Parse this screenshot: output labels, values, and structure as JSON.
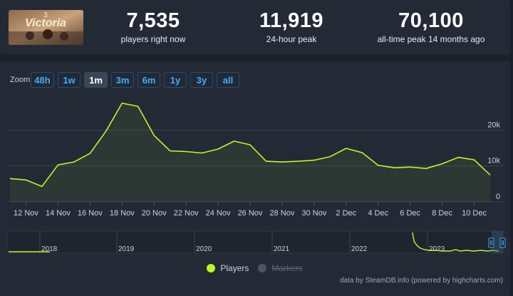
{
  "header": {
    "game_name": "Victoria 3",
    "thumb_text": "Victoria",
    "thumb_numeral": "3",
    "stats": [
      {
        "value": "7,535",
        "label": "players right now"
      },
      {
        "value": "11,919",
        "label": "24-hour peak"
      },
      {
        "value": "70,100",
        "label": "all-time peak 14 months ago"
      }
    ]
  },
  "zoom": {
    "label": "Zoom",
    "active": "1m",
    "buttons": [
      "48h",
      "1w",
      "1m",
      "3m",
      "6m",
      "1y",
      "3y",
      "all"
    ]
  },
  "chart_data": {
    "type": "line",
    "ylim": [
      0,
      30000
    ],
    "yticks": [
      {
        "v": 0,
        "label": "0"
      },
      {
        "v": 10000,
        "label": "10k"
      },
      {
        "v": 20000,
        "label": "20k"
      }
    ],
    "x_ticks": [
      "12 Nov",
      "14 Nov",
      "16 Nov",
      "18 Nov",
      "20 Nov",
      "22 Nov",
      "24 Nov",
      "26 Nov",
      "28 Nov",
      "30 Nov",
      "2 Dec",
      "4 Dec",
      "6 Dec",
      "8 Dec",
      "10 Dec"
    ],
    "series": [
      {
        "name": "Players",
        "color": "#bff52a",
        "x": [
          "11 Nov",
          "12 Nov",
          "13 Nov",
          "14 Nov",
          "15 Nov",
          "16 Nov",
          "17 Nov",
          "18 Nov",
          "19 Nov",
          "20 Nov",
          "21 Nov",
          "22 Nov",
          "23 Nov",
          "24 Nov",
          "25 Nov",
          "26 Nov",
          "27 Nov",
          "28 Nov",
          "29 Nov",
          "30 Nov",
          "1 Dec",
          "2 Dec",
          "3 Dec",
          "4 Dec",
          "5 Dec",
          "6 Dec",
          "7 Dec",
          "8 Dec",
          "9 Dec",
          "10 Dec",
          "11 Dec"
        ],
        "values": [
          6500,
          6100,
          4300,
          10300,
          11100,
          13500,
          19700,
          27500,
          26600,
          18500,
          14200,
          14000,
          13600,
          14700,
          16900,
          15900,
          11300,
          11100,
          11300,
          11600,
          12600,
          14900,
          13700,
          10200,
          9500,
          9700,
          9300,
          10600,
          12400,
          11700,
          7500
        ]
      }
    ],
    "navigator": {
      "year_labels": [
        "2018",
        "2019",
        "2020",
        "2021",
        "2022",
        "2023"
      ]
    },
    "legend": [
      {
        "name": "Players",
        "color": "#bff52a",
        "enabled": true
      },
      {
        "name": "Markers",
        "color": "#4a5568",
        "enabled": false
      }
    ]
  },
  "credit": "data by SteamDB.info (powered by highcharts.com)"
}
